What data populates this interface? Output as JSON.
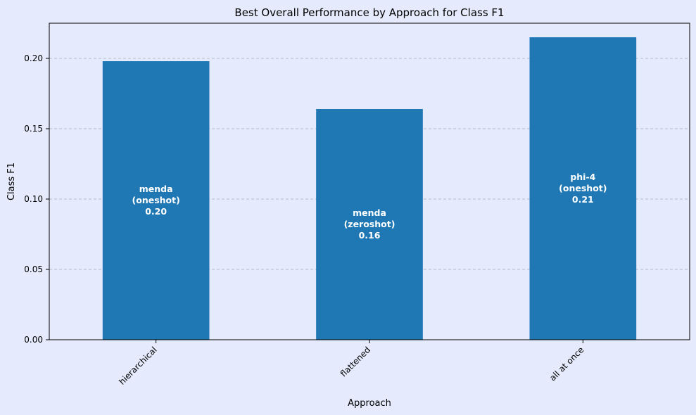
{
  "chart_data": {
    "type": "bar",
    "title": "Best Overall Performance by Approach for Class F1",
    "xlabel": "Approach",
    "ylabel": "Class F1",
    "categories": [
      "hierarchical",
      "flattened",
      "all at once"
    ],
    "values": [
      0.198,
      0.164,
      0.215
    ],
    "bar_labels": [
      [
        "menda",
        "(oneshot)",
        "0.20"
      ],
      [
        "menda",
        "(zeroshot)",
        "0.16"
      ],
      [
        "phi-4",
        "(oneshot)",
        "0.21"
      ]
    ],
    "ylim": [
      0,
      0.225
    ],
    "yticks": [
      "0.00",
      "0.05",
      "0.10",
      "0.15",
      "0.20"
    ],
    "ytick_values": [
      0,
      0.05,
      0.1,
      0.15,
      0.2
    ],
    "grid": "y-dashed",
    "legend": "none",
    "colors": {
      "bar": "#1f77b4",
      "background": "#e5eafc",
      "grid": "#b8bccc",
      "bar_label": "#ffffff"
    }
  }
}
